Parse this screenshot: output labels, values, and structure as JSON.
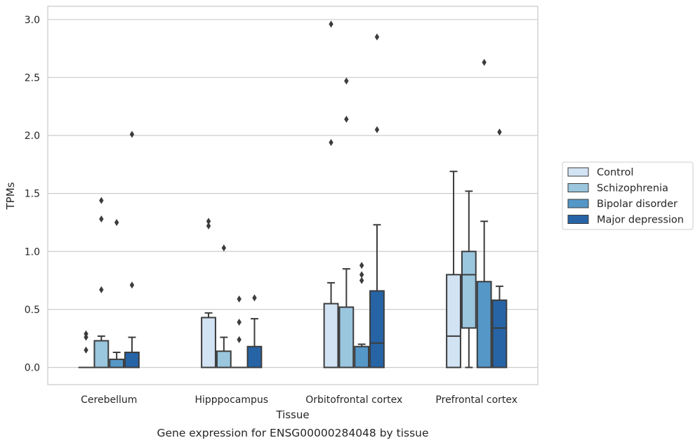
{
  "caption": "Gene expression for ENSG00000284048 by tissue",
  "chart_data": {
    "type": "box",
    "title": "",
    "xlabel": "Tissue",
    "ylabel": "TPMs",
    "ylim": [
      -0.14,
      3.1
    ],
    "yticks": [
      "0.0",
      "0.5",
      "1.0",
      "1.5",
      "2.0",
      "2.5",
      "3.0"
    ],
    "grid": "horizontal",
    "legend_position": "right",
    "categories": [
      "Cerebellum",
      "Hipppocampus",
      "Orbitofrontal cortex",
      "Prefrontal cortex"
    ],
    "series": [
      {
        "name": "Control",
        "color": "#d2e3f3",
        "boxes": [
          {
            "min": 0.0,
            "q1": 0.0,
            "median": 0.0,
            "q3": 0.0,
            "max": 0.0,
            "outliers": [
              0.29,
              0.26,
              0.15
            ]
          },
          {
            "min": 0.0,
            "q1": 0.0,
            "median": 0.0,
            "q3": 0.43,
            "max": 0.47,
            "outliers": [
              1.26,
              1.22
            ]
          },
          {
            "min": 0.0,
            "q1": 0.0,
            "median": 0.0,
            "q3": 0.55,
            "max": 0.73,
            "outliers": [
              2.96,
              1.94
            ]
          },
          {
            "min": 0.0,
            "q1": 0.0,
            "median": 0.27,
            "q3": 0.8,
            "max": 1.69,
            "outliers": []
          }
        ]
      },
      {
        "name": "Schizophrenia",
        "color": "#9ac6de",
        "boxes": [
          {
            "min": 0.0,
            "q1": 0.0,
            "median": 0.0,
            "q3": 0.23,
            "max": 0.27,
            "outliers": [
              1.44,
              1.28,
              0.67
            ]
          },
          {
            "min": 0.0,
            "q1": 0.0,
            "median": 0.0,
            "q3": 0.14,
            "max": 0.26,
            "outliers": [
              1.03
            ]
          },
          {
            "min": 0.0,
            "q1": 0.0,
            "median": 0.0,
            "q3": 0.52,
            "max": 0.85,
            "outliers": [
              2.47,
              2.14
            ]
          },
          {
            "min": 0.0,
            "q1": 0.34,
            "median": 0.8,
            "q3": 1.0,
            "max": 1.52,
            "outliers": []
          }
        ]
      },
      {
        "name": "Bipolar disorder",
        "color": "#5597c7",
        "boxes": [
          {
            "min": 0.0,
            "q1": 0.0,
            "median": 0.0,
            "q3": 0.07,
            "max": 0.13,
            "outliers": [
              1.25
            ]
          },
          {
            "min": 0.0,
            "q1": 0.0,
            "median": 0.0,
            "q3": 0.0,
            "max": 0.0,
            "outliers": [
              0.59,
              0.39,
              0.24
            ]
          },
          {
            "min": 0.0,
            "q1": 0.0,
            "median": 0.0,
            "q3": 0.18,
            "max": 0.2,
            "outliers": [
              0.88,
              0.8,
              0.75
            ]
          },
          {
            "min": 0.0,
            "q1": 0.0,
            "median": 0.0,
            "q3": 0.74,
            "max": 1.26,
            "outliers": [
              2.63
            ]
          }
        ]
      },
      {
        "name": "Major depression",
        "color": "#2764a6",
        "boxes": [
          {
            "min": 0.0,
            "q1": 0.0,
            "median": 0.0,
            "q3": 0.13,
            "max": 0.26,
            "outliers": [
              2.01,
              0.71
            ]
          },
          {
            "min": 0.0,
            "q1": 0.0,
            "median": 0.0,
            "q3": 0.18,
            "max": 0.42,
            "outliers": [
              0.6
            ]
          },
          {
            "min": 0.0,
            "q1": 0.0,
            "median": 0.21,
            "q3": 0.66,
            "max": 1.23,
            "outliers": [
              2.85,
              2.05
            ]
          },
          {
            "min": 0.0,
            "q1": 0.0,
            "median": 0.34,
            "q3": 0.58,
            "max": 0.7,
            "outliers": [
              2.03
            ]
          }
        ]
      }
    ]
  }
}
